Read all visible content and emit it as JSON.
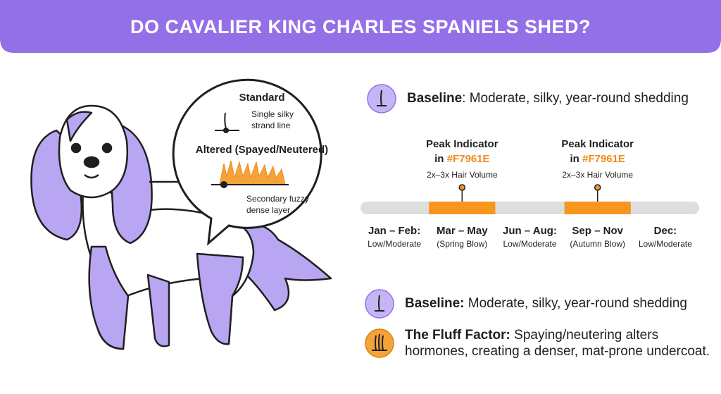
{
  "header": {
    "title": "DO CAVALIER KING CHARLES SPANIELS SHED?"
  },
  "bubble": {
    "standard": {
      "title": "Standard",
      "caption": [
        "Single silky",
        "strand line"
      ]
    },
    "altered": {
      "title": "Altered (Spayed/Neutered)",
      "caption": [
        "Secondary fuzzy",
        "dense layer"
      ]
    }
  },
  "top_note": {
    "label": "Baseline",
    "text": ": Moderate, silky, year-round shedding"
  },
  "timeline": {
    "peaks": [
      {
        "title": "Peak Indicator",
        "prefix": "in",
        "color_code": "#F7961E",
        "note": "2x–3x Hair Volume"
      },
      {
        "title": "Peak Indicator",
        "prefix": "in",
        "color_code": "#F7961E",
        "note": "2x–3x Hair Volume"
      }
    ],
    "segments": [
      {
        "months": "Jan – Feb:",
        "level": "Low/Moderate"
      },
      {
        "months": "Mar – May",
        "level": "(Spring Blow)"
      },
      {
        "months": "Jun – Aug:",
        "level": "Low/Moderate"
      },
      {
        "months": "Sep – Nov",
        "level": "(Autumn Blow)"
      },
      {
        "months": "Dec:",
        "level": "Low/Moderate"
      }
    ]
  },
  "legend": [
    {
      "label": "Baseline:",
      "text": [
        " Moderate, silky, year-round shedding"
      ]
    },
    {
      "label": "The Fluff Factor:",
      "text": [
        " Spaying/neutering alters",
        "hormones, creating a denser, mat-prone undercoat."
      ]
    }
  ]
}
